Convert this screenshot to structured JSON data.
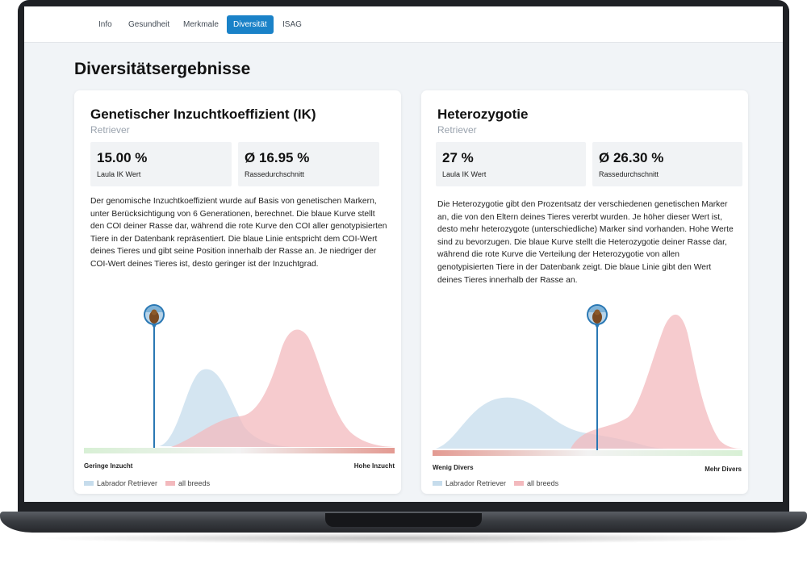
{
  "nav": {
    "tabs": [
      {
        "label": "Info",
        "active": false
      },
      {
        "label": "Gesundheit",
        "active": false
      },
      {
        "label": "Merkmale",
        "active": false
      },
      {
        "label": "Diversität",
        "active": true
      },
      {
        "label": "ISAG",
        "active": false
      }
    ]
  },
  "page": {
    "title": "Diversitätsergebnisse"
  },
  "cards": [
    {
      "title": "Genetischer Inzuchtkoeffizient (IK)",
      "subtitle": "Retriever",
      "stats": [
        {
          "value": "15.00 %",
          "label": "Laula IK Wert"
        },
        {
          "value": "Ø 16.95 %",
          "label": "Rassedurchschnitt"
        }
      ],
      "description": "Der genomische Inzuchtkoeffizient wurde auf Basis von genetischen Markern, unter Berücksichtigung von 6 Generationen, berechnet. Die blaue Kurve stellt den COI deiner Rasse dar, während die rote Kurve den COI aller genotypisierten Tiere in der Datenbank repräsentiert. Die blaue Linie entspricht dem COI-Wert deines Tieres und gibt seine Position innerhalb der Rasse an. Je niedriger der COI-Wert deines Tieres ist, desto geringer ist der Inzuchtgrad.",
      "axis_left": "Geringe Inzucht",
      "axis_right": "Hohe Inzucht",
      "legend": [
        {
          "label": "Labrador Retriever",
          "color": "#c6dcec"
        },
        {
          "label": "all breeds",
          "color": "#f3b9bd"
        }
      ]
    },
    {
      "title": "Heterozygotie",
      "subtitle": "Retriever",
      "stats": [
        {
          "value": "27 %",
          "label": "Laula IK Wert"
        },
        {
          "value": "Ø 26.30 %",
          "label": "Rassedurchschnitt"
        }
      ],
      "description": "Die Heterozygotie gibt den Prozentsatz der verschiedenen genetischen Marker an, die von den Eltern deines Tieres vererbt wurden. Je höher dieser Wert ist, desto mehr heterozygote (unterschiedliche) Marker sind vorhanden. Hohe Werte sind zu bevorzugen. Die blaue Kurve stellt die Heterozygotie deiner Rasse dar, während die rote Kurve die Verteilung der Heterozygotie von allen genotypisierten Tiere in der Datenbank zeigt. Die blaue Linie gibt den Wert deines Tieres innerhalb der Rasse an.",
      "axis_left": "Wenig Divers",
      "axis_right": "Mehr Divers",
      "legend": [
        {
          "label": "Labrador Retriever",
          "color": "#c6dcec"
        },
        {
          "label": "all breeds",
          "color": "#f3b9bd"
        }
      ]
    }
  ],
  "colors": {
    "accent": "#1a82c8",
    "marker_line": "#2a78b4",
    "breed_curve": "#c6dcec",
    "all_curve": "#f3b9bd"
  },
  "icons": [
    "dog-avatar-icon"
  ]
}
